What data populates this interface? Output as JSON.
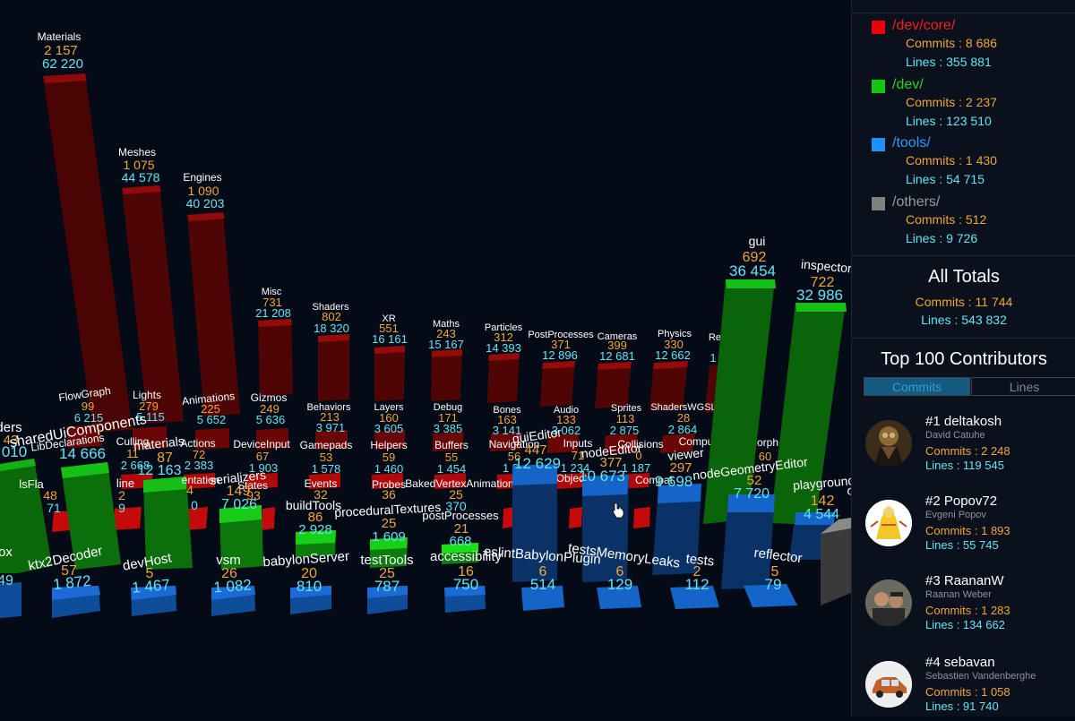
{
  "legend": [
    {
      "name": "/dev/core/",
      "commits": "Commits : 8 686",
      "lines": "Lines : 355 881",
      "color": "#e8000b"
    },
    {
      "name": "/dev/",
      "commits": "Commits : 2 237",
      "lines": "Lines : 123 510",
      "color": "#11c811"
    },
    {
      "name": "/tools/",
      "commits": "Commits : 1 430",
      "lines": "Lines : 54 715",
      "color": "#1e90ff"
    },
    {
      "name": "/others/",
      "commits": "Commits : 512",
      "lines": "Lines : 9 726",
      "color": "#808080"
    }
  ],
  "totals": {
    "title": "All Totals",
    "commits": "Commits : 11 744",
    "lines": "Lines : 543 832"
  },
  "contributors": {
    "title": "Top 100 Contributors",
    "tabs": [
      "Commits",
      "Lines"
    ],
    "active_tab": "Commits",
    "items": [
      {
        "rank": "#1 deltakosh",
        "full": "David Catuhe",
        "commits": "Commits : 2 248",
        "lines": "Lines : 119 545"
      },
      {
        "rank": "#2 Popov72",
        "full": "Evgeni Popov",
        "commits": "Commits : 1 893",
        "lines": "Lines : 55 745"
      },
      {
        "rank": "#3 RaananW",
        "full": "Raanan Weber",
        "commits": "Commits : 1 283",
        "lines": "Lines : 134 662"
      },
      {
        "rank": "#4 sebavan",
        "full": "Sebastien Vandenberghe",
        "commits": "Commits : 1 058",
        "lines": "Lines : 91 740"
      }
    ]
  },
  "scene": {
    "core_back": [
      {
        "name": "Materials",
        "commits": "2 157",
        "lines": "62 220"
      },
      {
        "name": "Meshes",
        "commits": "1 075",
        "lines": "44 578"
      },
      {
        "name": "Engines",
        "commits": "1 090",
        "lines": "40 203"
      },
      {
        "name": "Misc",
        "commits": "731",
        "lines": "21 208"
      },
      {
        "name": "Shaders",
        "commits": "802",
        "lines": "18 320"
      },
      {
        "name": "XR",
        "commits": "551",
        "lines": "16 161"
      },
      {
        "name": "Maths",
        "commits": "243",
        "lines": "15 167"
      },
      {
        "name": "Particles",
        "commits": "312",
        "lines": "14 393"
      },
      {
        "name": "PostProcesses",
        "commits": "371",
        "lines": "12 896"
      },
      {
        "name": "Cameras",
        "commits": "399",
        "lines": "12 681"
      },
      {
        "name": "Physics",
        "commits": "330",
        "lines": "12 662"
      },
      {
        "name": "Re",
        "commits": "",
        "lines": "1"
      }
    ],
    "core_mid": [
      {
        "name": "FlowGraph",
        "commits": "99",
        "lines": "6 215"
      },
      {
        "name": "Lights",
        "commits": "279",
        "lines": "5 115"
      },
      {
        "name": "Animations",
        "commits": "225",
        "lines": "5 652"
      },
      {
        "name": "Gizmos",
        "commits": "249",
        "lines": "5 636"
      },
      {
        "name": "Behaviors",
        "commits": "213",
        "lines": "3 971"
      },
      {
        "name": "Layers",
        "commits": "160",
        "lines": "3 605"
      },
      {
        "name": "Debug",
        "commits": "171",
        "lines": "3 385"
      },
      {
        "name": "Bones",
        "commits": "163",
        "lines": "3 141"
      },
      {
        "name": "Audio",
        "commits": "133",
        "lines": "3 062"
      },
      {
        "name": "Sprites",
        "commits": "113",
        "lines": "2 875"
      },
      {
        "name": "ShadersWGSL",
        "commits": "28",
        "lines": "2 864"
      }
    ],
    "core_front": [
      {
        "name": "Culling",
        "commits": "11",
        "lines": "2 668"
      },
      {
        "name": "Actions",
        "commits": "72",
        "lines": "2 383"
      },
      {
        "name": "DeviceInput",
        "commits": "67",
        "lines": "1 903"
      },
      {
        "name": "Gamepads",
        "commits": "53",
        "lines": "1 578"
      },
      {
        "name": "Helpers",
        "commits": "59",
        "lines": "1 460"
      },
      {
        "name": "Buffers",
        "commits": "55",
        "lines": "1 454"
      },
      {
        "name": "Navigation",
        "commits": "56",
        "lines": "1 3"
      },
      {
        "name": "Inputs",
        "commits": "71",
        "lines": "1 234"
      },
      {
        "name": "Collisions",
        "commits": "0",
        "lines": "1 187"
      },
      {
        "name": "Compute",
        "commits": "",
        "lines": ""
      },
      {
        "name": "Morph",
        "commits": "60",
        "lines": ""
      }
    ],
    "core_low": [
      {
        "name": "States",
        "commits": "93",
        "lines": ""
      },
      {
        "name": "Events",
        "commits": "32",
        "lines": ""
      },
      {
        "name": "Probes",
        "commits": "36",
        "lines": ""
      },
      {
        "name": "BakedVertexAnimation",
        "commits": "25",
        "lines": "370"
      },
      {
        "name": "Offline",
        "commits": "",
        "lines": ""
      },
      {
        "name": "Objects",
        "commits": "",
        "lines": ""
      },
      {
        "name": "Compat",
        "commits": "",
        "lines": ""
      }
    ],
    "dev": [
      {
        "name": "sharedUiComponents",
        "commits": "",
        "lines": "14 666"
      },
      {
        "name": "materials",
        "commits": "87",
        "lines": "12 163"
      },
      {
        "name": "serializers",
        "commits": "149",
        "lines": "7 026"
      },
      {
        "name": "buildTools",
        "commits": "86",
        "lines": "2 928"
      },
      {
        "name": "proceduralTextures",
        "commits": "25",
        "lines": "1 609"
      },
      {
        "name": "postProcesses",
        "commits": "21",
        "lines": "668"
      },
      {
        "name": "guiEditor",
        "commits": "447",
        "lines": "12 629"
      },
      {
        "name": "nodeEditor",
        "commits": "377",
        "lines": "10 673"
      },
      {
        "name": "viewer",
        "commits": "297",
        "lines": "9 698"
      },
      {
        "name": "nodeGeometryEditor",
        "commits": "52",
        "lines": "7 720"
      },
      {
        "name": "playground",
        "commits": "142",
        "lines": "4 544"
      },
      {
        "name": "others",
        "commits": "51",
        "lines": ""
      },
      {
        "name": "gui",
        "commits": "692",
        "lines": "36 454"
      },
      {
        "name": "inspector",
        "commits": "722",
        "lines": "32 986"
      },
      {
        "name": "loaders",
        "commits": "",
        "lines": ""
      },
      {
        "name": "lsFla",
        "commits": "48",
        "lines": "71"
      },
      {
        "name": "LibDeclarations",
        "commits": "",
        "lines": ""
      },
      {
        "name": "line",
        "commits": "2",
        "lines": "9"
      },
      {
        "name": "entation",
        "commits": "4",
        "lines": "0"
      }
    ],
    "tools": [
      {
        "name": "ox",
        "commits": "",
        "lines": "49"
      },
      {
        "name": "ktx2Decoder",
        "commits": "57",
        "lines": "1 872"
      },
      {
        "name": "devHost",
        "commits": "5",
        "lines": "1 467"
      },
      {
        "name": "vsm",
        "commits": "26",
        "lines": "1 082"
      },
      {
        "name": "babylonServer",
        "commits": "20",
        "lines": "810"
      },
      {
        "name": "testTools",
        "commits": "25",
        "lines": "787"
      },
      {
        "name": "accessibility",
        "commits": "16",
        "lines": "750"
      },
      {
        "name": "eslintBabylonPlugin",
        "commits": "6",
        "lines": "514"
      },
      {
        "name": "testsMemoryLeaks",
        "commits": "6",
        "lines": "129"
      },
      {
        "name": "tests",
        "commits": "2",
        "lines": "112"
      },
      {
        "name": "reflector",
        "commits": "5",
        "lines": "79"
      }
    ],
    "misc_labels": {
      "ders": "ders",
      "v43": "43",
      "v010": "010"
    }
  }
}
